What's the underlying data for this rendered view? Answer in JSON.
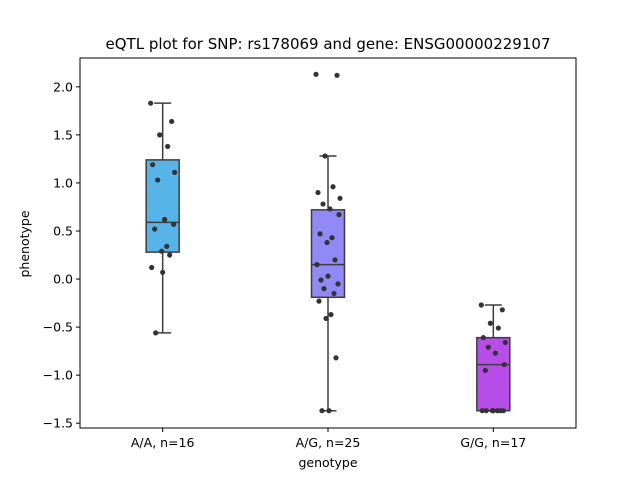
{
  "chart_data": {
    "type": "box",
    "title": "eQTL plot for SNP: rs178069 and gene: ENSG00000229107",
    "xlabel": "genotype",
    "ylabel": "phenotype",
    "ylim": [
      -1.55,
      2.3
    ],
    "yticks": [
      -1.5,
      -1.0,
      -0.5,
      0.0,
      0.5,
      1.0,
      1.5,
      2.0
    ],
    "ytick_labels": [
      "−1.5",
      "−1.0",
      "−0.5",
      "0.0",
      "0.5",
      "1.0",
      "1.5",
      "2.0"
    ],
    "grid": false,
    "categories": [
      "A/A, n=16",
      "A/G, n=25",
      "G/G, n=17"
    ],
    "series": [
      {
        "category": "A/A, n=16",
        "color": "#56b4e9",
        "whisker_low": -0.56,
        "q1": 0.28,
        "median": 0.59,
        "q3": 1.24,
        "whisker_high": 1.83,
        "points": [
          1.83,
          1.64,
          1.5,
          1.38,
          1.19,
          1.11,
          1.03,
          0.62,
          0.57,
          0.52,
          0.34,
          0.29,
          0.25,
          0.12,
          0.07,
          -0.56
        ]
      },
      {
        "category": "A/G, n=25",
        "color": "#9189f5",
        "whisker_low": -1.37,
        "q1": -0.19,
        "median": 0.15,
        "q3": 0.72,
        "whisker_high": 1.28,
        "points": [
          2.13,
          2.12,
          1.28,
          0.96,
          0.9,
          0.84,
          0.78,
          0.73,
          0.67,
          0.47,
          0.43,
          0.38,
          0.2,
          0.15,
          0.03,
          -0.01,
          -0.05,
          -0.1,
          -0.15,
          -0.23,
          -0.37,
          -0.41,
          -0.82,
          -1.37,
          -1.37
        ]
      },
      {
        "category": "G/G, n=17",
        "color": "#b84ee9",
        "whisker_low": -1.37,
        "q1": -1.37,
        "median": -0.89,
        "q3": -0.61,
        "whisker_high": -0.27,
        "points": [
          -0.27,
          -0.32,
          -0.46,
          -0.51,
          -0.61,
          -0.66,
          -0.71,
          -0.77,
          -0.89,
          -0.95,
          -1.37,
          -1.37,
          -1.37,
          -1.37,
          -1.37,
          -1.37,
          -1.37
        ]
      }
    ]
  }
}
